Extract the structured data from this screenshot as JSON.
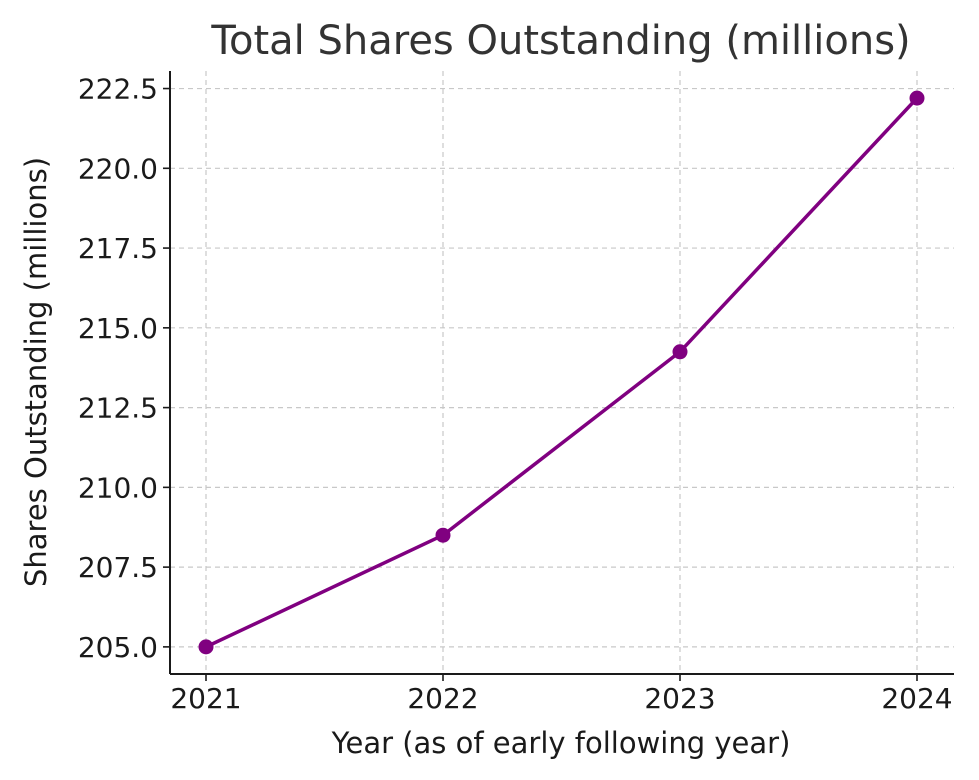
{
  "chart_data": {
    "type": "line",
    "title": "Total Shares Outstanding (millions)",
    "xlabel": "Year (as of early following year)",
    "ylabel": "Shares Outstanding (millions)",
    "categories": [
      "2021",
      "2022",
      "2023",
      "2024"
    ],
    "series": [
      {
        "values": [
          205.0,
          208.5,
          214.25,
          222.2
        ],
        "color": "#800080"
      }
    ],
    "ylim": [
      204.15,
      223.05
    ],
    "yticks": [
      "205.0",
      "207.5",
      "210.0",
      "212.5",
      "215.0",
      "217.5",
      "220.0",
      "222.5"
    ],
    "grid": true,
    "marker": "circle",
    "legend": "none"
  }
}
